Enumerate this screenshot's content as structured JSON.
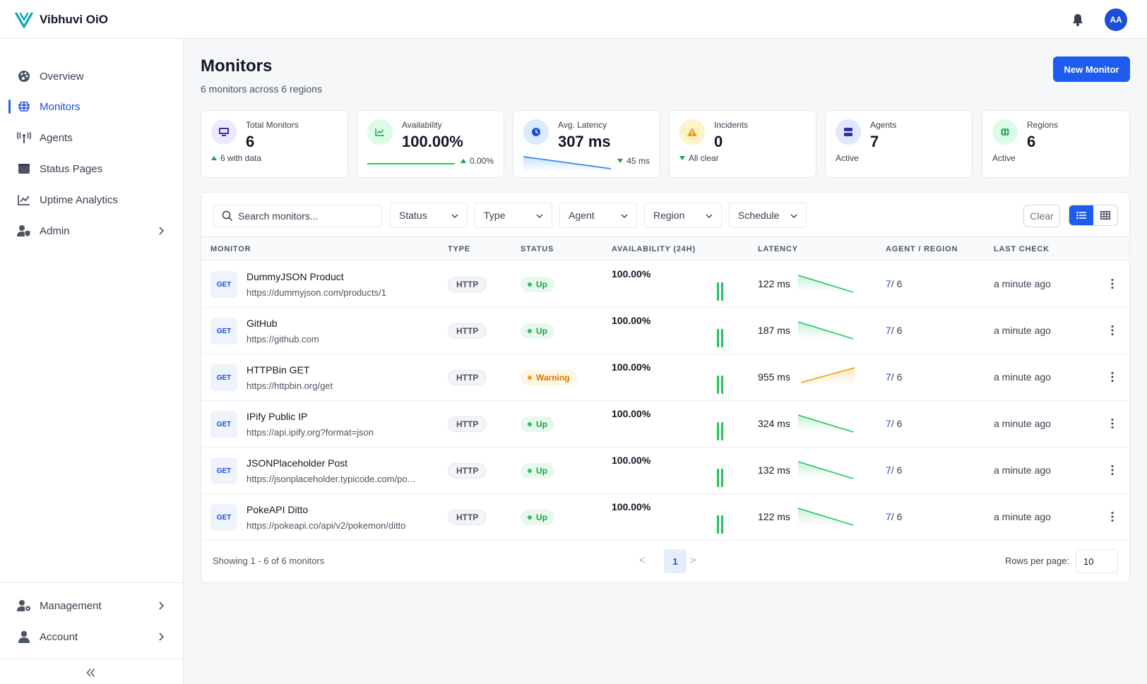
{
  "app": {
    "name": "Vibhuvi OiO",
    "user_initials": "AA"
  },
  "sidebar": {
    "items": [
      {
        "label": "Overview",
        "icon": "palette-icon"
      },
      {
        "label": "Monitors",
        "icon": "globe-icon",
        "active": true
      },
      {
        "label": "Agents",
        "icon": "antenna-icon"
      },
      {
        "label": "Status Pages",
        "icon": "window-icon"
      },
      {
        "label": "Uptime Analytics",
        "icon": "chart-line-icon"
      },
      {
        "label": "Admin",
        "icon": "user-shield-icon",
        "expandable": true
      }
    ],
    "bottom_items": [
      {
        "label": "Management",
        "icon": "users-cog-icon",
        "expandable": true
      },
      {
        "label": "Account",
        "icon": "user-icon",
        "expandable": true
      }
    ]
  },
  "page": {
    "title": "Monitors",
    "subtitle": "6 monitors across 6 regions",
    "new_button": "New Monitor"
  },
  "stats": {
    "total": {
      "label": "Total Monitors",
      "value": "6",
      "sub": "6 with data"
    },
    "availability": {
      "label": "Availability",
      "value": "100.00%",
      "change": "0.00%"
    },
    "latency": {
      "label": "Avg. Latency",
      "value": "307 ms",
      "change": "45 ms"
    },
    "incidents": {
      "label": "Incidents",
      "value": "0",
      "sub": "All clear"
    },
    "agents": {
      "label": "Agents",
      "value": "7",
      "sub": "Active"
    },
    "regions": {
      "label": "Regions",
      "value": "6",
      "sub": "Active"
    }
  },
  "filters": {
    "search_placeholder": "Search monitors...",
    "status": "Status",
    "type": "Type",
    "agent": "Agent",
    "region": "Region",
    "schedule": "Schedule",
    "clear": "Clear"
  },
  "table": {
    "columns": [
      "MONITOR",
      "TYPE",
      "STATUS",
      "AVAILABILITY (24H)",
      "LATENCY",
      "AGENT / REGION",
      "LAST CHECK"
    ],
    "rows": [
      {
        "method": "GET",
        "name": "DummyJSON Product",
        "url": "https://dummyjson.com/products/1",
        "type": "HTTP",
        "status": "Up",
        "status_kind": "up",
        "availability": "100.00%",
        "latency": "122 ms",
        "trend": "down",
        "agents": "7",
        "regions": "/ 6",
        "last_check": "a minute ago"
      },
      {
        "method": "GET",
        "name": "GitHub",
        "url": "https://github.com",
        "type": "HTTP",
        "status": "Up",
        "status_kind": "up",
        "availability": "100.00%",
        "latency": "187 ms",
        "trend": "down",
        "agents": "7",
        "regions": "/ 6",
        "last_check": "a minute ago"
      },
      {
        "method": "GET",
        "name": "HTTPBin GET",
        "url": "https://httpbin.org/get",
        "type": "HTTP",
        "status": "Warning",
        "status_kind": "warn",
        "availability": "100.00%",
        "latency": "955 ms",
        "trend": "up",
        "agents": "7",
        "regions": "/ 6",
        "last_check": "a minute ago"
      },
      {
        "method": "GET",
        "name": "IPify Public IP",
        "url": "https://api.ipify.org?format=json",
        "type": "HTTP",
        "status": "Up",
        "status_kind": "up",
        "availability": "100.00%",
        "latency": "324 ms",
        "trend": "down",
        "agents": "7",
        "regions": "/ 6",
        "last_check": "a minute ago"
      },
      {
        "method": "GET",
        "name": "JSONPlaceholder Post",
        "url": "https://jsonplaceholder.typicode.com/po...",
        "type": "HTTP",
        "status": "Up",
        "status_kind": "up",
        "availability": "100.00%",
        "latency": "132 ms",
        "trend": "down",
        "agents": "7",
        "regions": "/ 6",
        "last_check": "a minute ago"
      },
      {
        "method": "GET",
        "name": "PokeAPI Ditto",
        "url": "https://pokeapi.co/api/v2/pokemon/ditto",
        "type": "HTTP",
        "status": "Up",
        "status_kind": "up",
        "availability": "100.00%",
        "latency": "122 ms",
        "trend": "down",
        "agents": "7",
        "regions": "/ 6",
        "last_check": "a minute ago"
      }
    ]
  },
  "footer": {
    "showing": "Showing 1 - 6 of 6 monitors",
    "prev": "<",
    "page": "1",
    "next": ">",
    "rows_per_page_label": "Rows per page:",
    "rows_per_page": "10"
  },
  "colors": {
    "accent": "#1d5ced",
    "up": "#22c55e",
    "warning": "#f59e0b"
  }
}
